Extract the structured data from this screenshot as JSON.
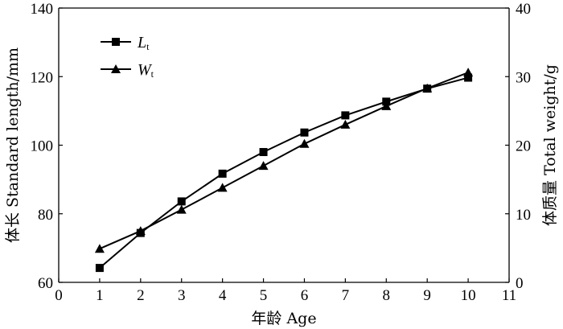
{
  "chart_data": {
    "type": "line",
    "title": "",
    "xlabel": "年龄 Age",
    "ylabel_left": "体长 Standard length/mm",
    "ylabel_right": "体质量 Total weight/g",
    "xlim": [
      0,
      11
    ],
    "ylim_left": [
      60,
      140
    ],
    "ylim_right": [
      0,
      40
    ],
    "x_ticks": [
      "0",
      "1",
      "2",
      "3",
      "4",
      "5",
      "6",
      "7",
      "8",
      "9",
      "10",
      "11"
    ],
    "y_ticks_left": [
      "60",
      "80",
      "100",
      "120",
      "140"
    ],
    "y_ticks_right": [
      "0",
      "10",
      "20",
      "30",
      "40"
    ],
    "grid": false,
    "legend_position": "top-left",
    "series": [
      {
        "name": "L",
        "name_subscript": "t",
        "axis": "left",
        "marker": "square",
        "x": [
          1,
          2,
          3,
          4,
          5,
          6,
          7,
          8,
          9,
          10
        ],
        "values": [
          64.2,
          74.4,
          83.6,
          91.7,
          98.0,
          103.7,
          108.7,
          112.7,
          116.5,
          119.7
        ]
      },
      {
        "name": "W",
        "name_subscript": "t",
        "axis": "right",
        "marker": "triangle",
        "x": [
          1,
          2,
          3,
          4,
          5,
          6,
          7,
          8,
          9,
          10
        ],
        "values": [
          4.9,
          7.5,
          10.6,
          13.8,
          17.0,
          20.2,
          23.0,
          25.7,
          28.3,
          30.6
        ]
      }
    ]
  }
}
